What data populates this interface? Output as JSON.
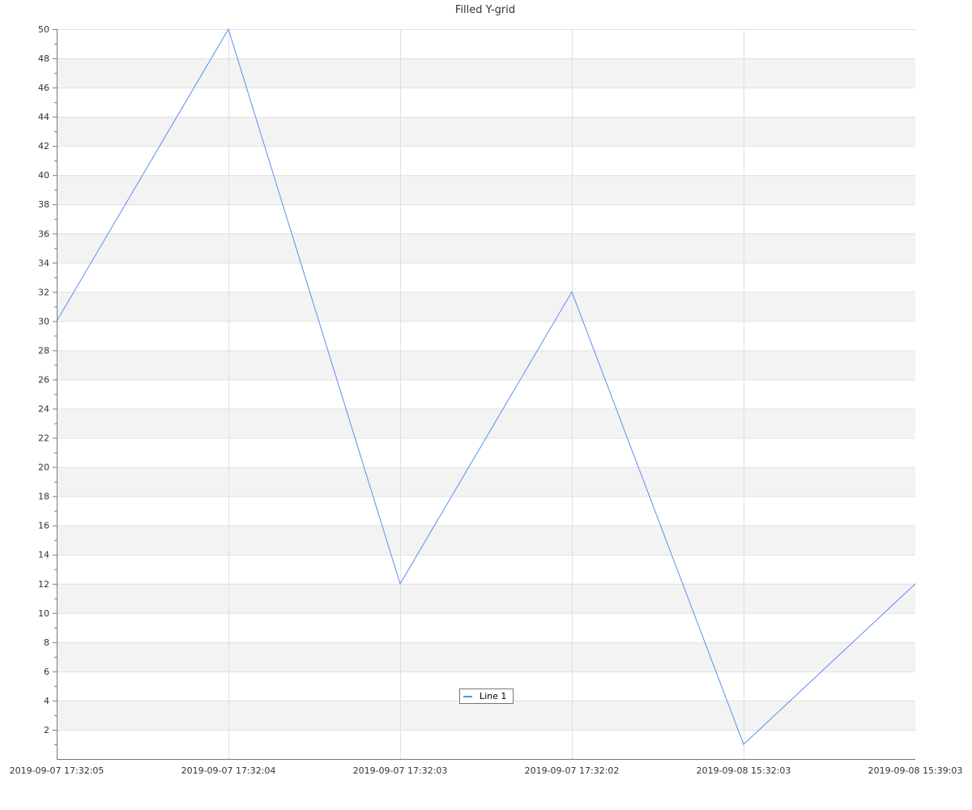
{
  "chart_data": {
    "type": "line",
    "title": "Filled Y-grid",
    "xlabel": "",
    "ylabel": "",
    "categories": [
      "2019-09-07 17:32:05",
      "2019-09-07 17:32:04",
      "2019-09-07 17:32:03",
      "2019-09-07 17:32:02",
      "2019-09-08 15:32:03",
      "2019-09-08 15:39:03"
    ],
    "series": [
      {
        "name": "Line 1",
        "values": [
          30,
          50,
          12,
          32,
          1,
          12
        ],
        "color": "#5b8ff0"
      }
    ],
    "ylim": [
      0,
      50
    ],
    "y_major_step": 2,
    "y_minor_step": 1,
    "grid": true,
    "filled_y_grid": true,
    "band_color": "#f3f3f3",
    "grid_color": "#e0e0e0",
    "legend_placement": "bottom-center"
  }
}
